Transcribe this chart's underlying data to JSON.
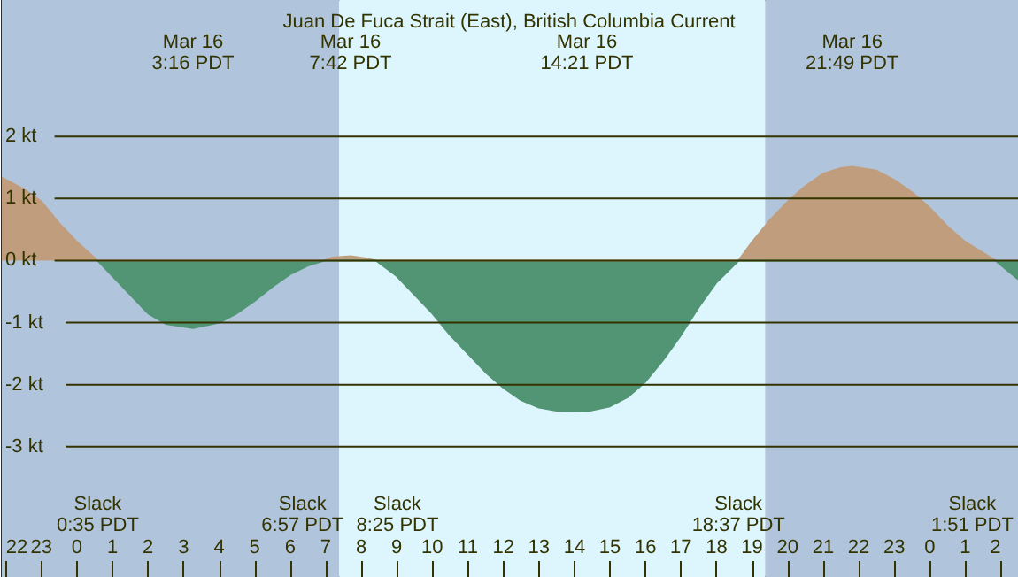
{
  "chart_data": {
    "type": "area",
    "title": "Juan De Fuca Strait (East), British Columbia Current",
    "xlim": [
      "--03-15T21:53",
      "--03-17T02:29"
    ],
    "ylim": [
      -5.1,
      4.2
    ],
    "yticks": [
      {
        "value": 2,
        "label": "2 kt"
      },
      {
        "value": 1,
        "label": "1 kt"
      },
      {
        "value": 0,
        "label": "0 kt"
      },
      {
        "value": -1,
        "label": "-1 kt"
      },
      {
        "value": -2,
        "label": "-2 kt"
      },
      {
        "value": -3,
        "label": "-3 kt"
      }
    ],
    "xticks": [
      {
        "value": "--03-15T22:00",
        "label": "22"
      },
      {
        "value": "--03-15T23:00",
        "label": "23"
      },
      {
        "value": "--03-16T00:00",
        "label": "0"
      },
      {
        "value": "--03-16T01:00",
        "label": "1"
      },
      {
        "value": "--03-16T02:00",
        "label": "2"
      },
      {
        "value": "--03-16T03:00",
        "label": "3"
      },
      {
        "value": "--03-16T04:00",
        "label": "4"
      },
      {
        "value": "--03-16T05:00",
        "label": "5"
      },
      {
        "value": "--03-16T06:00",
        "label": "6"
      },
      {
        "value": "--03-16T07:00",
        "label": "7"
      },
      {
        "value": "--03-16T08:00",
        "label": "8"
      },
      {
        "value": "--03-16T09:00",
        "label": "9"
      },
      {
        "value": "--03-16T10:00",
        "label": "10"
      },
      {
        "value": "--03-16T11:00",
        "label": "11"
      },
      {
        "value": "--03-16T12:00",
        "label": "12"
      },
      {
        "value": "--03-16T13:00",
        "label": "13"
      },
      {
        "value": "--03-16T14:00",
        "label": "14"
      },
      {
        "value": "--03-16T15:00",
        "label": "15"
      },
      {
        "value": "--03-16T16:00",
        "label": "16"
      },
      {
        "value": "--03-16T17:00",
        "label": "17"
      },
      {
        "value": "--03-16T18:00",
        "label": "18"
      },
      {
        "value": "--03-16T19:00",
        "label": "19"
      },
      {
        "value": "--03-16T20:00",
        "label": "20"
      },
      {
        "value": "--03-16T21:00",
        "label": "21"
      },
      {
        "value": "--03-16T22:00",
        "label": "22"
      },
      {
        "value": "--03-16T23:00",
        "label": "23"
      },
      {
        "value": "--03-17T00:00",
        "label": "0"
      },
      {
        "value": "--03-17T01:00",
        "label": "1"
      },
      {
        "value": "--03-17T02:00",
        "label": "2"
      }
    ],
    "grid": "y",
    "marker": "none",
    "series": [
      {
        "color": "#bf9d7d",
        "x": [
          "--03-15T21:53",
          "--03-15T22:30",
          "--03-15T23:00",
          "--03-15T23:30",
          "--03-16T00:00",
          "--03-16T00:35",
          "--03-16T06:57",
          "--03-16T07:12",
          "--03-16T07:42",
          "--03-16T08:06",
          "--03-16T08:25",
          "--03-16T18:37",
          "--03-16T19:00",
          "--03-16T19:30",
          "--03-16T20:00",
          "--03-16T20:30",
          "--03-16T21:00",
          "--03-16T21:30",
          "--03-16T21:49",
          "--03-16T22:30",
          "--03-16T23:00",
          "--03-16T23:30",
          "--03-17T00:00",
          "--03-17T00:30",
          "--03-17T01:00",
          "--03-17T01:51"
        ],
        "values": [
          1.34,
          1.15,
          0.95,
          0.6,
          0.3,
          0,
          0,
          0.05,
          0.07,
          0.04,
          0,
          0,
          0.3,
          0.65,
          0.95,
          1.2,
          1.4,
          1.49,
          1.51,
          1.45,
          1.3,
          1.1,
          0.85,
          0.55,
          0.3,
          0
        ]
      },
      {
        "color": "#529574",
        "x": [
          "--03-16T00:35",
          "--03-16T01:00",
          "--03-16T01:30",
          "--03-16T02:00",
          "--03-16T02:30",
          "--03-16T03:16",
          "--03-16T04:00",
          "--03-16T04:30",
          "--03-16T05:00",
          "--03-16T05:30",
          "--03-16T06:00",
          "--03-16T06:30",
          "--03-16T06:57",
          "--03-16T08:25",
          "--03-16T09:00",
          "--03-16T09:30",
          "--03-16T10:00",
          "--03-16T10:30",
          "--03-16T11:00",
          "--03-16T11:30",
          "--03-16T12:00",
          "--03-16T12:30",
          "--03-16T13:00",
          "--03-16T13:30",
          "--03-16T14:21",
          "--03-16T15:00",
          "--03-16T15:30",
          "--03-16T16:00",
          "--03-16T16:30",
          "--03-16T17:00",
          "--03-16T17:30",
          "--03-16T18:00",
          "--03-16T18:37",
          "--03-17T01:51",
          "--03-17T02:29"
        ],
        "values": [
          0,
          -0.25,
          -0.55,
          -0.85,
          -1.02,
          -1.09,
          -1,
          -0.85,
          -0.65,
          -0.42,
          -0.22,
          -0.08,
          0,
          0,
          -0.25,
          -0.55,
          -0.85,
          -1.2,
          -1.5,
          -1.8,
          -2.05,
          -2.25,
          -2.37,
          -2.42,
          -2.43,
          -2.35,
          -2.2,
          -1.95,
          -1.6,
          -1.2,
          -0.75,
          -0.35,
          0,
          0,
          -0.3
        ]
      }
    ],
    "bands": [
      {
        "axis": "x",
        "from": "--03-15T21:53",
        "to": "--03-16T07:23",
        "color": "#b0c4dc"
      },
      {
        "axis": "x",
        "from": "--03-16T07:23",
        "to": "--03-16T19:22",
        "color": "#ddf6fd"
      },
      {
        "axis": "x",
        "from": "--03-16T19:22",
        "to": "--03-17T02:29",
        "color": "#b0c4dc"
      }
    ],
    "annotations": [
      "Mar 16\n3:16 PDT",
      "Mar 16\n7:42 PDT",
      "Mar 16\n14:21 PDT",
      "Mar 16\n21:49 PDT",
      "Slack\n0:35 PDT",
      "Slack\n6:57 PDT",
      "Slack\n8:25 PDT",
      "Slack\n18:37 PDT",
      "Slack\n1:51 PDT"
    ]
  }
}
